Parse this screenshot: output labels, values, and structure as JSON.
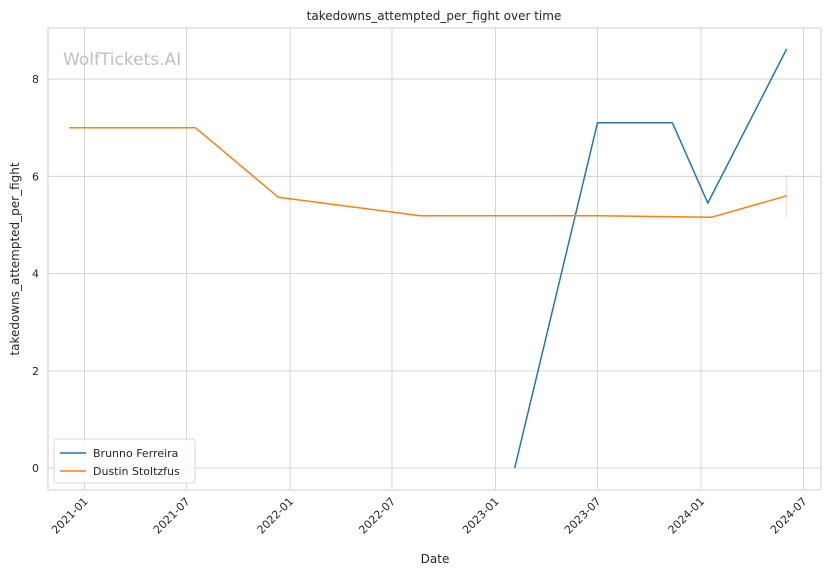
{
  "chart_data": {
    "type": "line",
    "title": "takedowns_attempted_per_fight over time",
    "xlabel": "Date",
    "ylabel": "takedowns_attempted_per_fight",
    "watermark": "WolfTickets.AI",
    "x_ticks": [
      "2021-01",
      "2021-07",
      "2022-01",
      "2022-07",
      "2023-01",
      "2023-07",
      "2024-01",
      "2024-07"
    ],
    "y_ticks": [
      0,
      2,
      4,
      6,
      8
    ],
    "xlim": [
      "2020-10-28",
      "2024-08-01"
    ],
    "ylim": [
      -0.45,
      9.05
    ],
    "grid": true,
    "legend_position": "lower-left",
    "series": [
      {
        "name": "Brunno Ferreira",
        "color": "#1f77b4",
        "points": [
          {
            "x": "2023-02-04",
            "y": 0.0
          },
          {
            "x": "2023-07-01",
            "y": 7.1
          },
          {
            "x": "2023-11-11",
            "y": 7.1
          },
          {
            "x": "2024-01-13",
            "y": 5.45
          },
          {
            "x": "2024-06-01",
            "y": 8.62
          }
        ]
      },
      {
        "name": "Dustin Stoltzfus",
        "color": "#ff7f0e",
        "points": [
          {
            "x": "2020-12-05",
            "y": 7.0
          },
          {
            "x": "2021-07-17",
            "y": 7.0
          },
          {
            "x": "2021-12-11",
            "y": 5.57
          },
          {
            "x": "2022-08-20",
            "y": 5.19
          },
          {
            "x": "2023-07-01",
            "y": 5.19
          },
          {
            "x": "2024-01-20",
            "y": 5.16
          },
          {
            "x": "2024-06-01",
            "y": 5.6
          }
        ],
        "error_bar": {
          "x": "2024-06-01",
          "low": 5.14,
          "high": 6.04
        }
      }
    ]
  }
}
